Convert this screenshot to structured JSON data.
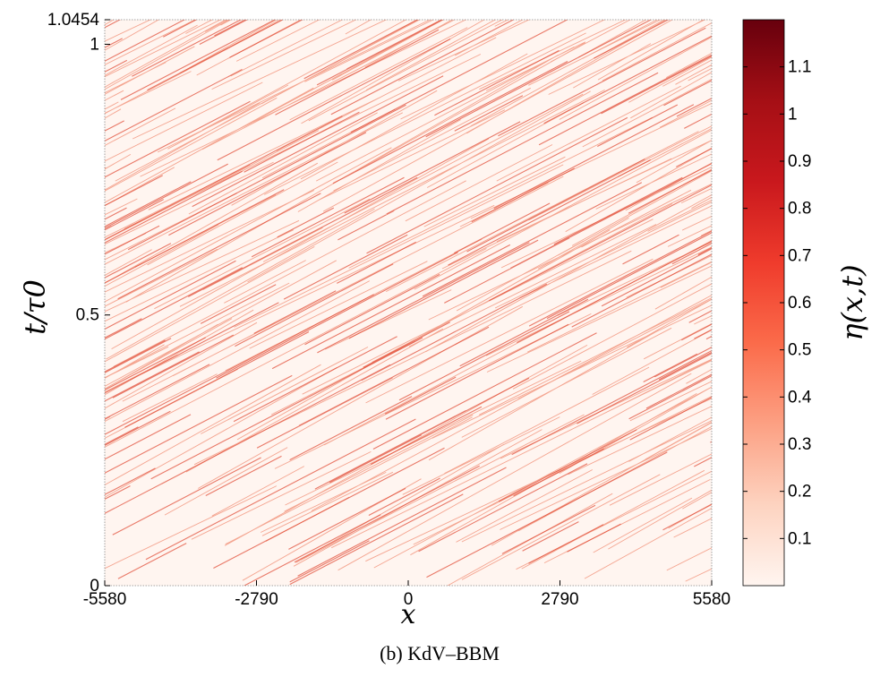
{
  "chart_data": {
    "type": "heatmap",
    "title": "",
    "xlabel": "x",
    "ylabel": "t/τ0",
    "colorbar_label": "η(x,t)",
    "caption": "(b) KdV–BBM",
    "xlim": [
      -5580,
      5580
    ],
    "ylim": [
      0,
      1.0454
    ],
    "x_ticks": [
      -5580,
      -2790,
      0,
      2790,
      5580
    ],
    "x_tick_labels": [
      "-5580",
      "-2790",
      "0",
      "2790",
      "5580"
    ],
    "y_ticks": [
      0,
      0.5,
      1,
      1.0454
    ],
    "y_tick_labels": [
      "0",
      "0.5",
      "1",
      "1.0454"
    ],
    "colorbar_range": [
      0,
      1.2
    ],
    "colorbar_ticks": [
      0.1,
      0.2,
      0.3,
      0.4,
      0.5,
      0.6,
      0.7,
      0.8,
      0.9,
      1,
      1.1
    ],
    "colorbar_tick_labels": [
      "0.1",
      "0.2",
      "0.3",
      "0.4",
      "0.5",
      "0.6",
      "0.7",
      "0.8",
      "0.9",
      "1",
      "1.1"
    ],
    "colormap": [
      "#fff5f0",
      "#fdd3c0",
      "#fca083",
      "#fb6b4a",
      "#ef3b2c",
      "#c9181d",
      "#a50f15",
      "#67000d"
    ],
    "grid": false,
    "pattern": "dense rightward-propagating wave crests (diagonal stripes)"
  }
}
